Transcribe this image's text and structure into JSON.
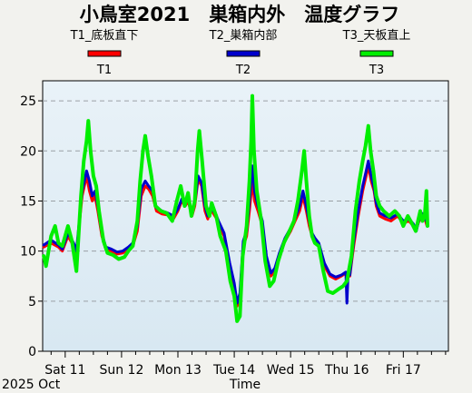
{
  "chart_data": {
    "type": "line",
    "title": "小鳥室2021　巣箱内外　温度グラフ",
    "xlabel": "Time",
    "ylabel": "",
    "date_caption": "2025 Oct",
    "ylim": [
      0,
      27
    ],
    "yticks": [
      0,
      5,
      10,
      15,
      20,
      25
    ],
    "xlim_days": [
      10.6,
      17.8
    ],
    "x_ticks": [
      {
        "day": 11,
        "label": "Sat 11"
      },
      {
        "day": 12,
        "label": "Sun 12"
      },
      {
        "day": 13,
        "label": "Mon 13"
      },
      {
        "day": 14,
        "label": "Tue 14"
      },
      {
        "day": 15,
        "label": "Wed 15"
      },
      {
        "day": 16,
        "label": "Thu 16"
      },
      {
        "day": 17,
        "label": "Fri 17"
      }
    ],
    "grid": true,
    "legend_placement": "top",
    "series": [
      {
        "name": "T1_底板直下",
        "short": "T1",
        "color": "#ff0000",
        "points": [
          [
            10.62,
            10.4
          ],
          [
            10.75,
            10.8
          ],
          [
            10.88,
            10.4
          ],
          [
            10.95,
            10.0
          ],
          [
            11.05,
            11.5
          ],
          [
            11.15,
            10.5
          ],
          [
            11.2,
            9.8
          ],
          [
            11.3,
            15.5
          ],
          [
            11.38,
            17.5
          ],
          [
            11.43,
            16.0
          ],
          [
            11.48,
            15.0
          ],
          [
            11.53,
            15.5
          ],
          [
            11.58,
            14.0
          ],
          [
            11.65,
            11.5
          ],
          [
            11.72,
            10.2
          ],
          [
            11.82,
            10.0
          ],
          [
            11.92,
            9.7
          ],
          [
            12.02,
            9.8
          ],
          [
            12.12,
            10.2
          ],
          [
            12.2,
            10.5
          ],
          [
            12.28,
            12.0
          ],
          [
            12.35,
            15.5
          ],
          [
            12.42,
            16.5
          ],
          [
            12.48,
            16.2
          ],
          [
            12.55,
            15.5
          ],
          [
            12.62,
            14.0
          ],
          [
            12.72,
            13.7
          ],
          [
            12.82,
            13.6
          ],
          [
            12.92,
            13.2
          ],
          [
            13.0,
            14.0
          ],
          [
            13.07,
            15.0
          ],
          [
            13.13,
            14.5
          ],
          [
            13.18,
            15.0
          ],
          [
            13.25,
            13.5
          ],
          [
            13.3,
            14.5
          ],
          [
            13.36,
            17.2
          ],
          [
            13.42,
            16.5
          ],
          [
            13.48,
            14.0
          ],
          [
            13.53,
            13.2
          ],
          [
            13.58,
            14.2
          ],
          [
            13.68,
            13.3
          ],
          [
            13.72,
            12.6
          ],
          [
            13.82,
            11.5
          ],
          [
            13.92,
            8.5
          ],
          [
            14.0,
            6.5
          ],
          [
            14.05,
            4.5
          ],
          [
            14.1,
            5.5
          ],
          [
            14.16,
            10.5
          ],
          [
            14.22,
            11.5
          ],
          [
            14.27,
            14.0
          ],
          [
            14.32,
            17.0
          ],
          [
            14.36,
            15.0
          ],
          [
            14.42,
            14.0
          ],
          [
            14.5,
            12.5
          ],
          [
            14.57,
            9.0
          ],
          [
            14.65,
            7.5
          ],
          [
            14.72,
            8.0
          ],
          [
            14.8,
            9.5
          ],
          [
            14.9,
            11.0
          ],
          [
            15.0,
            12.0
          ],
          [
            15.08,
            13.0
          ],
          [
            15.16,
            14.0
          ],
          [
            15.22,
            15.5
          ],
          [
            15.28,
            14.0
          ],
          [
            15.33,
            12.5
          ],
          [
            15.38,
            11.5
          ],
          [
            15.43,
            11.0
          ],
          [
            15.5,
            10.5
          ],
          [
            15.6,
            8.5
          ],
          [
            15.7,
            7.5
          ],
          [
            15.8,
            7.2
          ],
          [
            15.9,
            7.5
          ],
          [
            15.98,
            7.8
          ],
          [
            16.05,
            7.5
          ],
          [
            16.12,
            10.5
          ],
          [
            16.2,
            13.5
          ],
          [
            16.28,
            16.0
          ],
          [
            16.34,
            17.5
          ],
          [
            16.38,
            18.5
          ],
          [
            16.43,
            17.0
          ],
          [
            16.48,
            16.0
          ],
          [
            16.52,
            14.5
          ],
          [
            16.58,
            13.5
          ],
          [
            16.68,
            13.2
          ],
          [
            16.78,
            13.0
          ],
          [
            16.9,
            13.5
          ],
          [
            17.0,
            12.8
          ],
          [
            17.1,
            13.0
          ],
          [
            17.18,
            12.5
          ],
          [
            17.23,
            12.2
          ],
          [
            17.28,
            13.0
          ],
          [
            17.32,
            13.5
          ],
          [
            17.38,
            13.3
          ],
          [
            17.42,
            12.5
          ]
        ]
      },
      {
        "name": "T2_巣箱内部",
        "short": "T2",
        "color": "#0000cc",
        "points": [
          [
            10.62,
            10.6
          ],
          [
            10.75,
            11.1
          ],
          [
            10.88,
            10.6
          ],
          [
            10.95,
            10.2
          ],
          [
            11.05,
            11.8
          ],
          [
            11.15,
            10.8
          ],
          [
            11.2,
            10.0
          ],
          [
            11.3,
            16.0
          ],
          [
            11.38,
            18.0
          ],
          [
            11.43,
            17.0
          ],
          [
            11.48,
            15.5
          ],
          [
            11.53,
            16.0
          ],
          [
            11.58,
            14.5
          ],
          [
            11.65,
            11.8
          ],
          [
            11.72,
            10.4
          ],
          [
            11.82,
            10.2
          ],
          [
            11.92,
            9.9
          ],
          [
            12.02,
            10.0
          ],
          [
            12.12,
            10.4
          ],
          [
            12.2,
            10.8
          ],
          [
            12.28,
            12.5
          ],
          [
            12.35,
            16.2
          ],
          [
            12.42,
            17.0
          ],
          [
            12.48,
            16.5
          ],
          [
            12.55,
            16.0
          ],
          [
            12.62,
            14.3
          ],
          [
            12.72,
            14.0
          ],
          [
            12.82,
            13.8
          ],
          [
            12.92,
            13.5
          ],
          [
            13.0,
            14.2
          ],
          [
            13.07,
            15.2
          ],
          [
            13.13,
            14.8
          ],
          [
            13.18,
            15.3
          ],
          [
            13.25,
            13.8
          ],
          [
            13.3,
            14.8
          ],
          [
            13.36,
            17.5
          ],
          [
            13.42,
            16.8
          ],
          [
            13.48,
            14.5
          ],
          [
            13.53,
            13.5
          ],
          [
            13.58,
            14.4
          ],
          [
            13.68,
            13.6
          ],
          [
            13.72,
            13.0
          ],
          [
            13.82,
            11.8
          ],
          [
            13.92,
            8.8
          ],
          [
            14.0,
            6.8
          ],
          [
            14.05,
            4.8
          ],
          [
            14.1,
            5.8
          ],
          [
            14.16,
            11.0
          ],
          [
            14.22,
            12.0
          ],
          [
            14.27,
            15.0
          ],
          [
            14.32,
            18.5
          ],
          [
            14.36,
            16.0
          ],
          [
            14.42,
            14.5
          ],
          [
            14.5,
            13.0
          ],
          [
            14.57,
            9.5
          ],
          [
            14.65,
            7.8
          ],
          [
            14.72,
            8.3
          ],
          [
            14.8,
            9.8
          ],
          [
            14.9,
            11.3
          ],
          [
            15.0,
            12.3
          ],
          [
            15.08,
            13.3
          ],
          [
            15.16,
            14.5
          ],
          [
            15.22,
            16.0
          ],
          [
            15.28,
            14.5
          ],
          [
            15.33,
            13.0
          ],
          [
            15.38,
            11.8
          ],
          [
            15.43,
            11.3
          ],
          [
            15.5,
            10.8
          ],
          [
            15.6,
            8.8
          ],
          [
            15.7,
            7.7
          ],
          [
            15.8,
            7.4
          ],
          [
            15.9,
            7.6
          ],
          [
            15.98,
            7.9
          ],
          [
            16.0,
            4.8
          ],
          [
            16.02,
            7.7
          ],
          [
            16.05,
            7.6
          ],
          [
            16.12,
            11.0
          ],
          [
            16.2,
            14.0
          ],
          [
            16.28,
            16.5
          ],
          [
            16.34,
            18.0
          ],
          [
            16.38,
            19.0
          ],
          [
            16.43,
            17.5
          ],
          [
            16.48,
            16.3
          ],
          [
            16.52,
            14.8
          ],
          [
            16.58,
            13.8
          ],
          [
            16.68,
            13.5
          ],
          [
            16.78,
            13.3
          ],
          [
            16.9,
            13.7
          ],
          [
            17.0,
            13.0
          ],
          [
            17.1,
            13.2
          ],
          [
            17.18,
            12.7
          ],
          [
            17.23,
            12.0
          ],
          [
            17.28,
            13.2
          ],
          [
            17.32,
            13.8
          ],
          [
            17.38,
            13.6
          ],
          [
            17.42,
            12.8
          ]
        ]
      },
      {
        "name": "T3_天板直上",
        "short": "T3",
        "color": "#00ee00",
        "points": [
          [
            10.62,
            9.5
          ],
          [
            10.66,
            8.5
          ],
          [
            10.75,
            11.5
          ],
          [
            10.82,
            12.5
          ],
          [
            10.88,
            10.8
          ],
          [
            10.95,
            10.5
          ],
          [
            11.05,
            12.5
          ],
          [
            11.12,
            11.0
          ],
          [
            11.2,
            8.0
          ],
          [
            11.28,
            15.5
          ],
          [
            11.33,
            19.0
          ],
          [
            11.38,
            21.0
          ],
          [
            11.41,
            23.0
          ],
          [
            11.45,
            20.0
          ],
          [
            11.5,
            17.5
          ],
          [
            11.55,
            16.5
          ],
          [
            11.6,
            14.0
          ],
          [
            11.68,
            11.0
          ],
          [
            11.75,
            9.8
          ],
          [
            11.85,
            9.6
          ],
          [
            11.95,
            9.2
          ],
          [
            12.05,
            9.4
          ],
          [
            12.12,
            10.0
          ],
          [
            12.2,
            10.5
          ],
          [
            12.28,
            13.0
          ],
          [
            12.33,
            17.0
          ],
          [
            12.38,
            20.0
          ],
          [
            12.42,
            21.5
          ],
          [
            12.47,
            19.5
          ],
          [
            12.53,
            17.5
          ],
          [
            12.6,
            14.5
          ],
          [
            12.7,
            14.0
          ],
          [
            12.8,
            13.8
          ],
          [
            12.9,
            13.0
          ],
          [
            12.98,
            15.0
          ],
          [
            13.05,
            16.5
          ],
          [
            13.12,
            14.5
          ],
          [
            13.18,
            15.8
          ],
          [
            13.24,
            13.5
          ],
          [
            13.3,
            15.0
          ],
          [
            13.35,
            20.0
          ],
          [
            13.38,
            22.0
          ],
          [
            13.43,
            19.0
          ],
          [
            13.5,
            14.5
          ],
          [
            13.56,
            13.5
          ],
          [
            13.6,
            14.8
          ],
          [
            13.68,
            13.5
          ],
          [
            13.75,
            11.5
          ],
          [
            13.85,
            10.0
          ],
          [
            13.93,
            7.0
          ],
          [
            14.0,
            5.5
          ],
          [
            14.05,
            3.0
          ],
          [
            14.1,
            3.5
          ],
          [
            14.15,
            9.5
          ],
          [
            14.22,
            12.5
          ],
          [
            14.27,
            17.0
          ],
          [
            14.3,
            21.0
          ],
          [
            14.32,
            25.5
          ],
          [
            14.35,
            20.0
          ],
          [
            14.4,
            16.0
          ],
          [
            14.48,
            13.0
          ],
          [
            14.55,
            9.0
          ],
          [
            14.63,
            6.5
          ],
          [
            14.7,
            7.0
          ],
          [
            14.78,
            9.0
          ],
          [
            14.88,
            10.8
          ],
          [
            14.98,
            12.0
          ],
          [
            15.06,
            13.0
          ],
          [
            15.13,
            15.0
          ],
          [
            15.2,
            18.0
          ],
          [
            15.24,
            20.0
          ],
          [
            15.28,
            17.0
          ],
          [
            15.33,
            13.5
          ],
          [
            15.38,
            11.5
          ],
          [
            15.43,
            10.8
          ],
          [
            15.5,
            10.5
          ],
          [
            15.58,
            8.0
          ],
          [
            15.66,
            6.0
          ],
          [
            15.75,
            5.8
          ],
          [
            15.85,
            6.2
          ],
          [
            15.93,
            6.5
          ],
          [
            16.0,
            7.0
          ],
          [
            16.08,
            9.5
          ],
          [
            16.15,
            14.0
          ],
          [
            16.22,
            17.0
          ],
          [
            16.28,
            19.0
          ],
          [
            16.33,
            20.5
          ],
          [
            16.38,
            22.5
          ],
          [
            16.42,
            20.0
          ],
          [
            16.47,
            18.0
          ],
          [
            16.52,
            15.5
          ],
          [
            16.58,
            14.5
          ],
          [
            16.65,
            14.0
          ],
          [
            16.75,
            13.5
          ],
          [
            16.85,
            14.0
          ],
          [
            16.93,
            13.5
          ],
          [
            17.0,
            12.5
          ],
          [
            17.08,
            13.5
          ],
          [
            17.15,
            12.8
          ],
          [
            17.22,
            12.0
          ],
          [
            17.26,
            13.0
          ],
          [
            17.3,
            14.0
          ],
          [
            17.34,
            13.0
          ],
          [
            17.38,
            13.5
          ],
          [
            17.41,
            16.0
          ],
          [
            17.43,
            12.5
          ]
        ]
      }
    ]
  }
}
